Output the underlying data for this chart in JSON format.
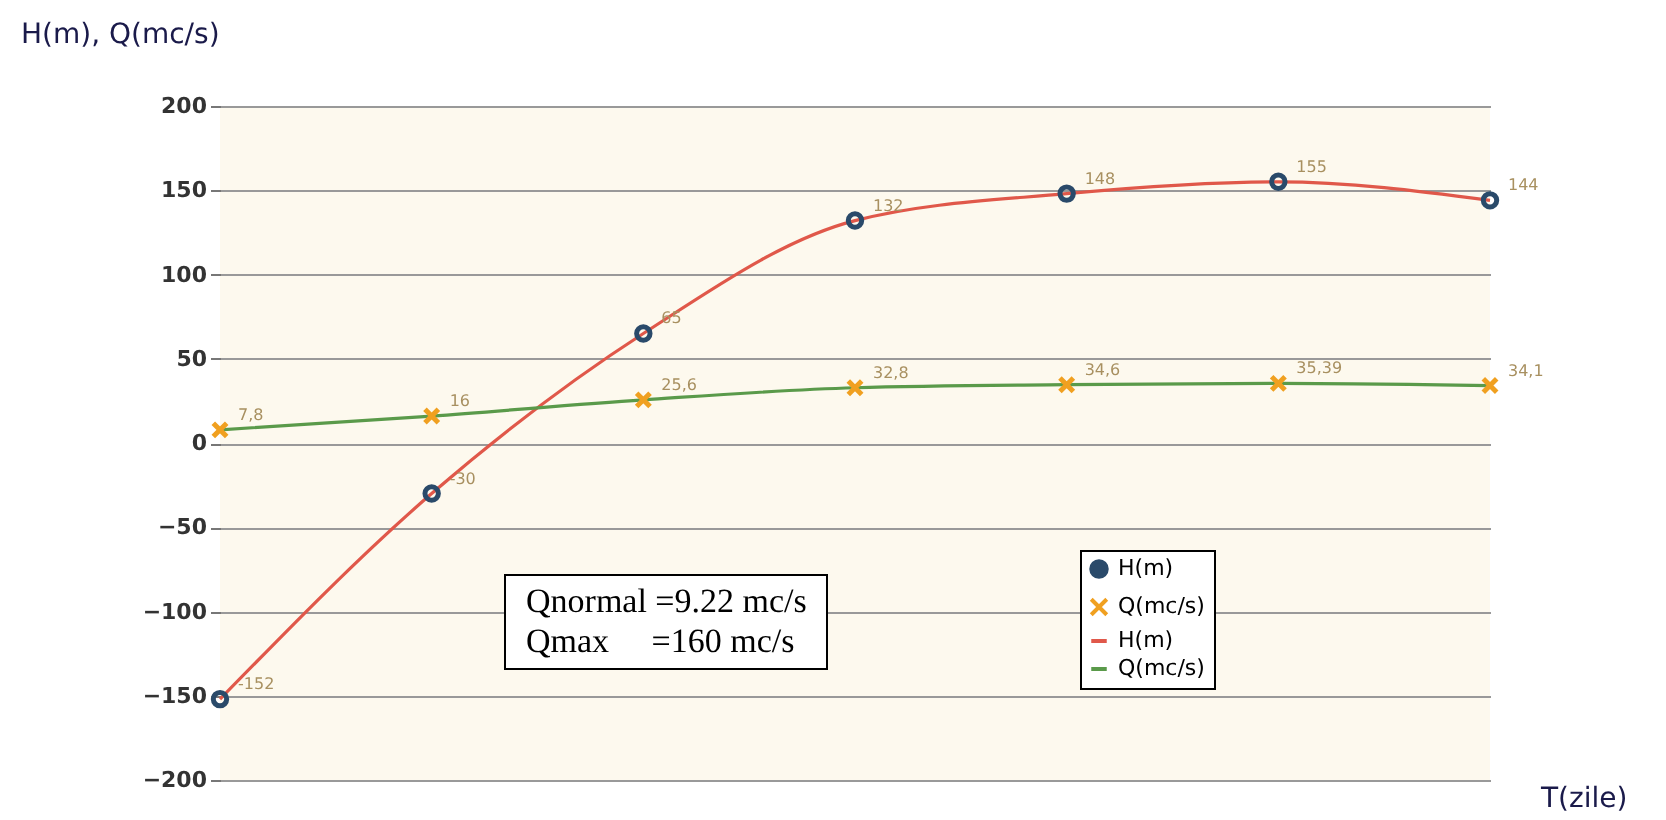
{
  "chart_data": {
    "type": "line",
    "ylabel": "H(m), Q(mc/s)",
    "xlabel": "T(zile)",
    "categories": [
      null,
      null,
      null,
      null,
      null,
      null,
      null
    ],
    "series": [
      {
        "name": "H(m)",
        "type": "scatter",
        "marker": "circle",
        "color": "#2a4a6a",
        "values": [
          -152,
          -30,
          65,
          132,
          148,
          155,
          144
        ],
        "value_labels": [
          "-152",
          "-30",
          "65",
          "132",
          "148",
          "155",
          "144"
        ]
      },
      {
        "name": "Q(mc/s)",
        "type": "scatter",
        "marker": "cross",
        "color": "#f0a020",
        "values": [
          7.8,
          16,
          25.6,
          32.8,
          34.6,
          35.39,
          34.1
        ],
        "value_labels": [
          "7,8",
          "16",
          "25,6",
          "32,8",
          "34,6",
          "35,39",
          "34,1"
        ]
      },
      {
        "name": "H(m)",
        "type": "line",
        "marker": "none",
        "color": "#e0584a",
        "values": [
          -152,
          -30,
          65,
          132,
          148,
          155,
          144
        ]
      },
      {
        "name": "Q(mc/s)",
        "type": "line",
        "marker": "none",
        "color": "#5a9a4a",
        "values": [
          7.8,
          16,
          25.6,
          32.8,
          34.6,
          35.39,
          34.1
        ]
      }
    ],
    "ylim": [
      -200,
      200
    ],
    "yticks": [
      -200,
      -150,
      -100,
      -50,
      0,
      50,
      100,
      150,
      200
    ],
    "grid": "y",
    "legend": "bottom right",
    "tick_labels": "y",
    "annotations": [
      "Qnormal =9.22 mc/s",
      "Qmax     =160 mc/s"
    ]
  }
}
